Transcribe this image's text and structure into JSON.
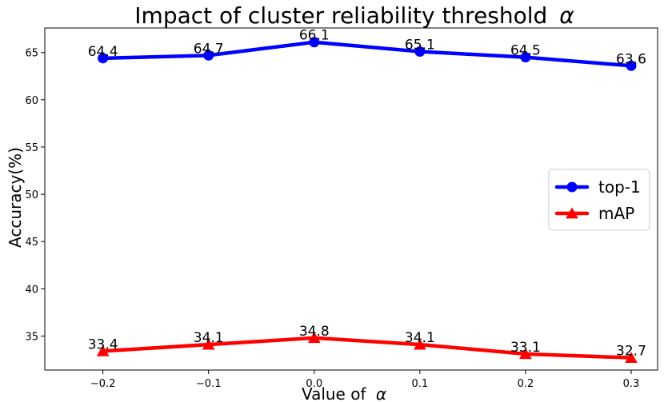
{
  "chart_data": {
    "type": "line",
    "title": "Impact of cluster reliability threshold",
    "title_symbol": "α",
    "xlabel": "Value of",
    "xlabel_symbol": "α",
    "ylabel": "Accuracy(%)",
    "x": [
      -0.2,
      -0.1,
      0.0,
      0.1,
      0.2,
      0.3
    ],
    "x_tick_labels": [
      "−0.2",
      "−0.1",
      "0.0",
      "0.1",
      "0.2",
      "0.3"
    ],
    "xlim": [
      -0.255,
      0.325
    ],
    "ylim": [
      31.4,
      67.6
    ],
    "y_ticks": [
      35,
      40,
      45,
      50,
      55,
      60,
      65
    ],
    "y_tick_labels": [
      "35",
      "40",
      "45",
      "50",
      "55",
      "60",
      "65"
    ],
    "grid": false,
    "legend_position": "center-right",
    "series": [
      {
        "name": "top-1",
        "color": "#0000ff",
        "marker": "circle",
        "values": [
          64.4,
          64.7,
          66.1,
          65.1,
          64.5,
          63.6
        ],
        "labels": [
          "64.4",
          "64.7",
          "66.1",
          "65.1",
          "64.5",
          "63.6"
        ]
      },
      {
        "name": "mAP",
        "color": "#ff0000",
        "marker": "triangle",
        "values": [
          33.4,
          34.1,
          34.8,
          34.1,
          33.1,
          32.7
        ],
        "labels": [
          "33.4",
          "34.1",
          "34.8",
          "34.1",
          "33.1",
          "32.7"
        ]
      }
    ]
  }
}
